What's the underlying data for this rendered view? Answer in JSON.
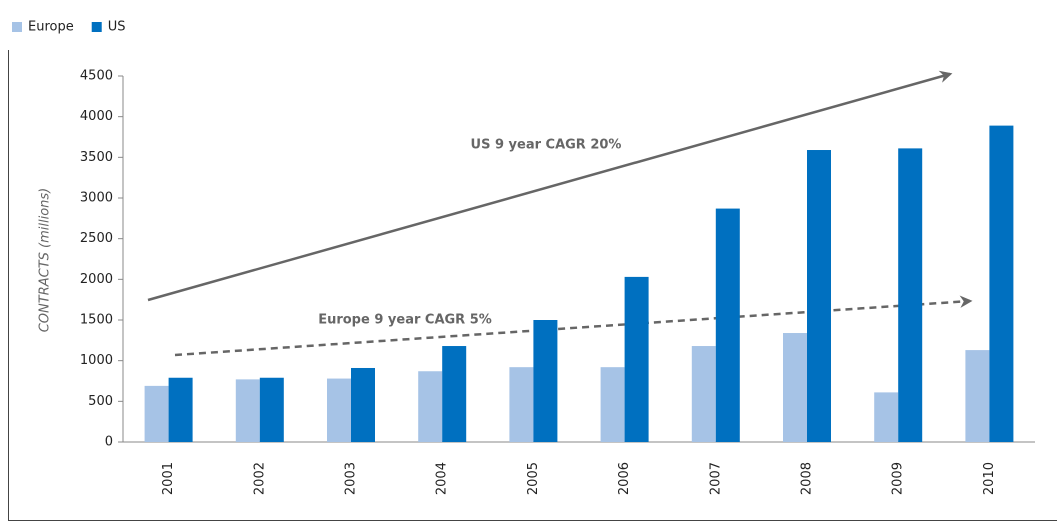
{
  "chart_data": {
    "type": "bar",
    "categories": [
      "2001",
      "2002",
      "2003",
      "2004",
      "2005",
      "2006",
      "2007",
      "2008",
      "2009",
      "2010"
    ],
    "series": [
      {
        "name": "Europe",
        "color": "#a6c3e6",
        "values": [
          690,
          770,
          780,
          870,
          920,
          920,
          1180,
          1340,
          610,
          1130
        ]
      },
      {
        "name": "US",
        "color": "#0070c0",
        "values": [
          790,
          790,
          910,
          1180,
          1500,
          2030,
          2870,
          3590,
          3610,
          3890
        ]
      }
    ],
    "y_label": "CONTRACTS (millions)",
    "ylim": [
      0,
      4500
    ],
    "yticks": [
      0,
      500,
      1000,
      1500,
      2000,
      2500,
      3000,
      3500,
      4000,
      4500
    ],
    "annotations": [
      "US 9 year CAGR 20%",
      "Europe 9 year CAGR 5%"
    ],
    "legend": "top-left"
  }
}
